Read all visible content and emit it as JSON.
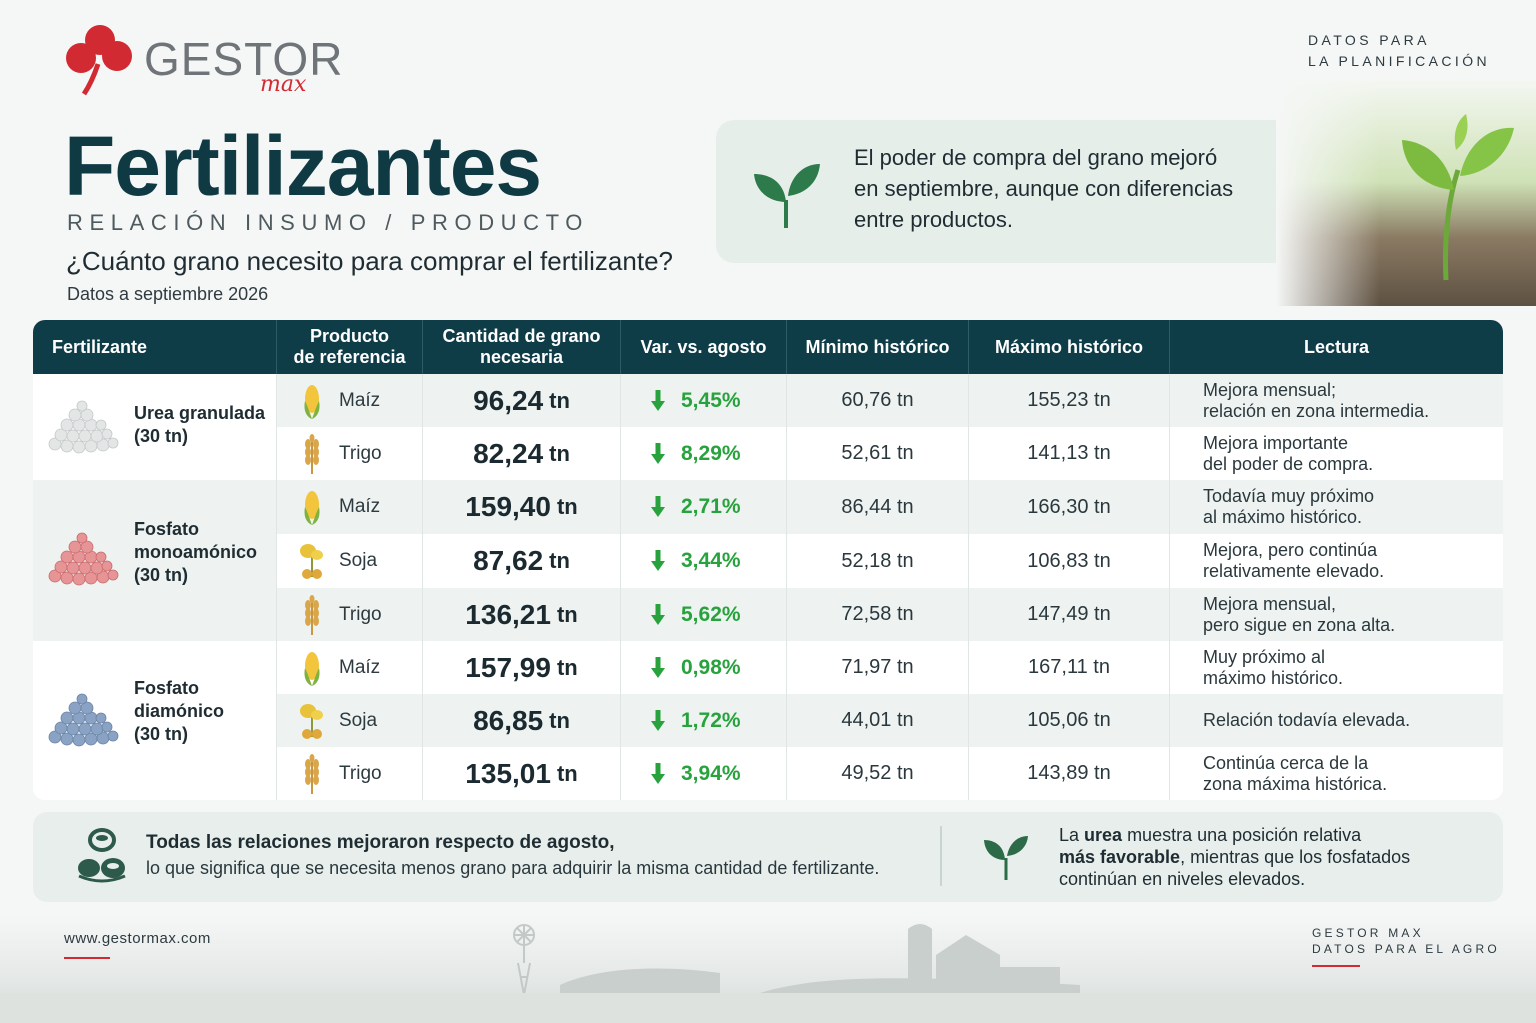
{
  "brand": {
    "name": "GESTOR",
    "sub": "max",
    "accent": "#d22a33"
  },
  "top_tag": {
    "line1": "DATOS PARA",
    "line2": "LA PLANIFICACIÓN"
  },
  "header": {
    "title": "Fertilizantes",
    "subtitle": "RELACIÓN INSUMO / PRODUCTO",
    "question": "¿Cuánto grano necesito para comprar el fertilizante?",
    "date": "Datos a septiembre 2026"
  },
  "callout": {
    "line1": "El poder de compra del grano mejoró",
    "line2": "en septiembre, aunque con diferencias",
    "line3": "entre productos.",
    "icon": "sprout-icon"
  },
  "table": {
    "headers": {
      "fertilizante": "Fertilizante",
      "producto_1": "Producto",
      "producto_2": "de referencia",
      "cantidad_1": "Cantidad de grano",
      "cantidad_2": "necesaria",
      "variacion": "Var. vs. agosto",
      "minimo": "Mínimo histórico",
      "maximo": "Máximo histórico",
      "lectura": "Lectura"
    },
    "groups": [
      {
        "name_1": "Urea granulada",
        "name_2": "(30 tn)",
        "name_3": "",
        "pile_color": "#e4e6e6"
      },
      {
        "name_1": "Fosfato",
        "name_2": "monoamónico",
        "name_3": "(30 tn)",
        "pile_color": "#e79496"
      },
      {
        "name_1": "Fosfato",
        "name_2": "diamónico",
        "name_3": "(30 tn)",
        "pile_color": "#8aa3c4"
      }
    ],
    "rows": [
      {
        "product": "Maíz",
        "icon": "corn-icon",
        "qty": "96,24",
        "unit": "tn",
        "var": "5,45%",
        "min": "60,76 tn",
        "max": "155,23 tn",
        "read_1": "Mejora mensual;",
        "read_2": "relación en zona intermedia."
      },
      {
        "product": "Trigo",
        "icon": "wheat-icon",
        "qty": "82,24",
        "unit": "tn",
        "var": "8,29%",
        "min": "52,61 tn",
        "max": "141,13 tn",
        "read_1": "Mejora importante",
        "read_2": "del poder de compra."
      },
      {
        "product": "Maíz",
        "icon": "corn-icon",
        "qty": "159,40",
        "unit": "tn",
        "var": "2,71%",
        "min": "86,44 tn",
        "max": "166,30 tn",
        "read_1": "Todavía muy próximo",
        "read_2": "al máximo histórico."
      },
      {
        "product": "Soja",
        "icon": "soy-icon",
        "qty": "87,62",
        "unit": "tn",
        "var": "3,44%",
        "min": "52,18 tn",
        "max": "106,83 tn",
        "read_1": "Mejora, pero continúa",
        "read_2": "relativamente elevado."
      },
      {
        "product": "Trigo",
        "icon": "wheat-icon",
        "qty": "136,21",
        "unit": "tn",
        "var": "5,62%",
        "min": "72,58 tn",
        "max": "147,49 tn",
        "read_1": "Mejora mensual,",
        "read_2": "pero sigue en zona alta."
      },
      {
        "product": "Maíz",
        "icon": "corn-icon",
        "qty": "157,99",
        "unit": "tn",
        "var": "0,98%",
        "min": "71,97 tn",
        "max": "167,11 tn",
        "read_1": "Muy próximo al",
        "read_2": "máximo histórico."
      },
      {
        "product": "Soja",
        "icon": "soy-icon",
        "qty": "86,85",
        "unit": "tn",
        "var": "1,72%",
        "min": "44,01 tn",
        "max": "105,06 tn",
        "read_1": "Relación todavía elevada.",
        "read_2": ""
      },
      {
        "product": "Trigo",
        "icon": "wheat-icon",
        "qty": "135,01",
        "unit": "tn",
        "var": "3,94%",
        "min": "49,52 tn",
        "max": "143,89 tn",
        "read_1": "Continúa cerca de la",
        "read_2": "zona máxima histórica."
      }
    ],
    "colors": {
      "header_bg": "#0e3c47",
      "positive": "#27a23c"
    }
  },
  "summary": {
    "bold_line": "Todas las relaciones mejoraron respecto de agosto,",
    "line2": "lo que significa que se necesita menos grano para adquirir la misma cantidad de fertilizante.",
    "right_pre": "La ",
    "right_b1": "urea",
    "right_mid": " muestra una posición relativa",
    "right_b2": "más favorable",
    "right_post": ", mientras que los fosfatados",
    "right_line3": "continúan en niveles elevados."
  },
  "footer": {
    "url": "www.gestormax.com",
    "right_1": "GESTOR MAX",
    "right_2": "DATOS PARA EL AGRO"
  }
}
